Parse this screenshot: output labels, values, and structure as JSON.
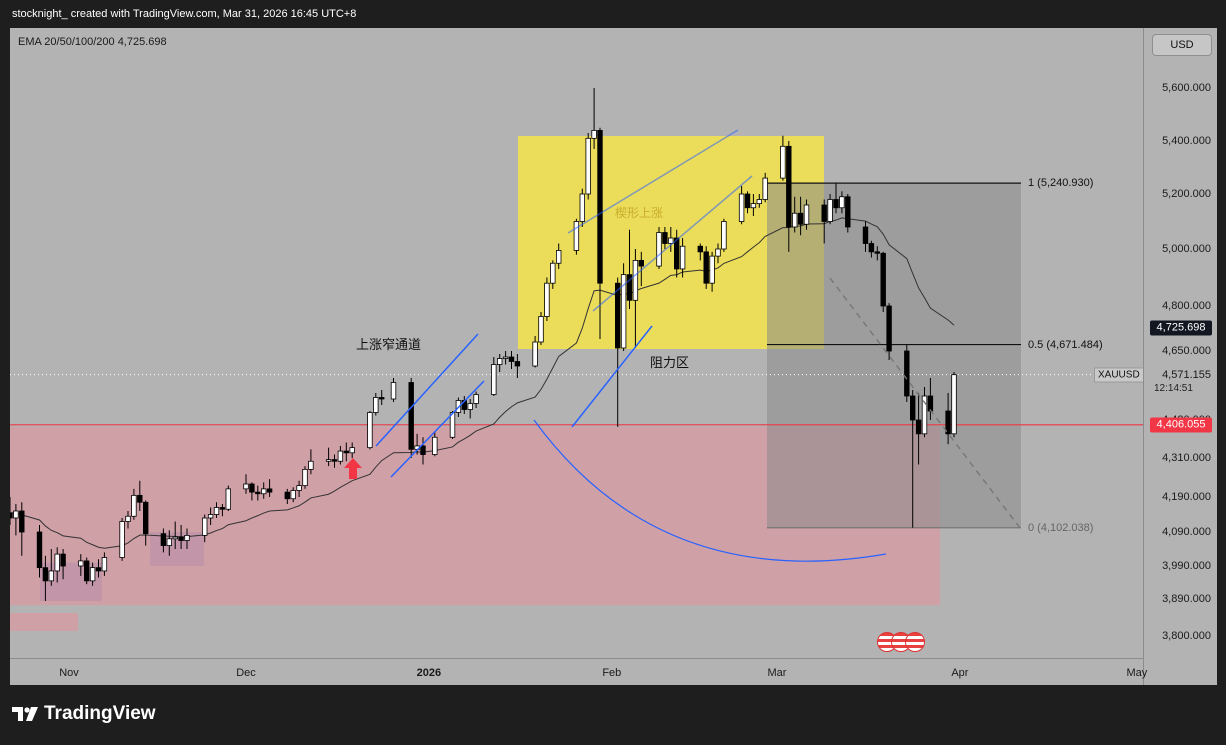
{
  "header": {
    "text": "stocknight_ created with TradingView.com, Mar 31, 2026 16:45 UTC+8"
  },
  "legend": {
    "text": "EMA 20/50/100/200  4,725.698"
  },
  "currency_button": "USD",
  "symbol": "XAUUSD",
  "brand": "TradingView",
  "last_price": {
    "value": "4,571.155",
    "countdown": "12:14:51"
  },
  "badges": {
    "ema": {
      "text": "4,725.698",
      "value": 4725.698,
      "color": "#131722",
      "text_color": "#ffffff"
    },
    "support": {
      "text": "4,406.055",
      "value": 4406.055,
      "color": "#f23645",
      "text_color": "#ffffff"
    }
  },
  "price_axis": {
    "ticks": [
      {
        "label": "5,600.000",
        "value": 5600
      },
      {
        "label": "5,400.000",
        "value": 5400
      },
      {
        "label": "5,200.000",
        "value": 5200
      },
      {
        "label": "5,000.000",
        "value": 5000
      },
      {
        "label": "4,800.000",
        "value": 4800
      },
      {
        "label": "4,650.000",
        "value": 4650
      },
      {
        "label": "4,420.000",
        "value": 4420
      },
      {
        "label": "4,310.000",
        "value": 4310
      },
      {
        "label": "4,190.000",
        "value": 4190
      },
      {
        "label": "4,090.000",
        "value": 4090
      },
      {
        "label": "3,990.000",
        "value": 3990
      },
      {
        "label": "3,890.000",
        "value": 3890
      },
      {
        "label": "3,800.000",
        "value": 3800
      }
    ]
  },
  "time_axis": {
    "labels": [
      {
        "label": "Nov",
        "date": "2025-11-01",
        "bold": false
      },
      {
        "label": "Dec",
        "date": "2025-12-01",
        "bold": false
      },
      {
        "label": "2026",
        "date": "2026-01-01",
        "bold": true
      },
      {
        "label": "Feb",
        "date": "2026-02-01",
        "bold": false
      },
      {
        "label": "Mar",
        "date": "2026-03-01",
        "bold": false
      },
      {
        "label": "Apr",
        "date": "2026-04-01",
        "bold": false
      },
      {
        "label": "May",
        "date": "2026-05-01",
        "bold": false
      }
    ]
  },
  "annotations": {
    "channel": "上涨窄通道",
    "resistance": "阻力区",
    "wedge": "楔形上涨"
  },
  "fib_levels": [
    {
      "label": "1 (5,240.930)",
      "value": 5240.93
    },
    {
      "label": "0.5 (4,671.484)",
      "value": 4671.484
    },
    {
      "label": "0 (4,102.038)",
      "value": 4102.038
    }
  ],
  "colors": {
    "background": "#b3b3b3",
    "candle_up": "#ffffff",
    "candle_down": "#000000",
    "resistance_zone": "#f5e34a",
    "support_zone": "#d99aa3",
    "fib_box": "#8a8a8a",
    "trendline": "#2962ff",
    "support_line": "#f23645"
  },
  "chart_data": {
    "type": "candlestick",
    "symbol": "XAUUSD",
    "ylim": [
      3760,
      5680
    ],
    "x_start": "2025-10-21",
    "x_end": "2026-05-10",
    "candles": [
      {
        "d": "2025-10-21",
        "o": 4175,
        "h": 4195,
        "l": 4120,
        "c": 4145
      },
      {
        "d": "2025-10-22",
        "o": 4145,
        "h": 4190,
        "l": 4110,
        "c": 4130
      },
      {
        "d": "2025-10-23",
        "o": 4130,
        "h": 4170,
        "l": 4080,
        "c": 4150
      },
      {
        "d": "2025-10-24",
        "o": 4150,
        "h": 4175,
        "l": 4020,
        "c": 4090
      },
      {
        "d": "2025-10-27",
        "o": 4090,
        "h": 4110,
        "l": 3955,
        "c": 3985
      },
      {
        "d": "2025-10-28",
        "o": 3985,
        "h": 4020,
        "l": 3885,
        "c": 3945
      },
      {
        "d": "2025-10-29",
        "o": 3945,
        "h": 4040,
        "l": 3930,
        "c": 3975
      },
      {
        "d": "2025-10-30",
        "o": 3975,
        "h": 4045,
        "l": 3940,
        "c": 4025
      },
      {
        "d": "2025-10-31",
        "o": 4025,
        "h": 4040,
        "l": 3950,
        "c": 3990
      },
      {
        "d": "2025-11-03",
        "o": 3990,
        "h": 4025,
        "l": 3960,
        "c": 4005
      },
      {
        "d": "2025-11-04",
        "o": 4005,
        "h": 4015,
        "l": 3935,
        "c": 3945
      },
      {
        "d": "2025-11-05",
        "o": 3945,
        "h": 4000,
        "l": 3930,
        "c": 3985
      },
      {
        "d": "2025-11-06",
        "o": 3985,
        "h": 4010,
        "l": 3955,
        "c": 3975
      },
      {
        "d": "2025-11-07",
        "o": 3975,
        "h": 4030,
        "l": 3960,
        "c": 4015
      },
      {
        "d": "2025-11-10",
        "o": 4015,
        "h": 4130,
        "l": 4005,
        "c": 4120
      },
      {
        "d": "2025-11-11",
        "o": 4120,
        "h": 4150,
        "l": 4100,
        "c": 4135
      },
      {
        "d": "2025-11-12",
        "o": 4135,
        "h": 4215,
        "l": 4125,
        "c": 4195
      },
      {
        "d": "2025-11-13",
        "o": 4195,
        "h": 4240,
        "l": 4150,
        "c": 4175
      },
      {
        "d": "2025-11-14",
        "o": 4175,
        "h": 4180,
        "l": 4050,
        "c": 4085
      },
      {
        "d": "2025-11-17",
        "o": 4085,
        "h": 4100,
        "l": 4030,
        "c": 4050
      },
      {
        "d": "2025-11-18",
        "o": 4050,
        "h": 4095,
        "l": 4020,
        "c": 4070
      },
      {
        "d": "2025-11-19",
        "o": 4070,
        "h": 4120,
        "l": 4040,
        "c": 4075
      },
      {
        "d": "2025-11-20",
        "o": 4075,
        "h": 4110,
        "l": 4040,
        "c": 4065
      },
      {
        "d": "2025-11-21",
        "o": 4065,
        "h": 4100,
        "l": 4040,
        "c": 4080
      },
      {
        "d": "2025-11-24",
        "o": 4080,
        "h": 4140,
        "l": 4060,
        "c": 4130
      },
      {
        "d": "2025-11-25",
        "o": 4130,
        "h": 4160,
        "l": 4110,
        "c": 4140
      },
      {
        "d": "2025-11-26",
        "o": 4140,
        "h": 4175,
        "l": 4130,
        "c": 4160
      },
      {
        "d": "2025-11-27",
        "o": 4160,
        "h": 4170,
        "l": 4135,
        "c": 4155
      },
      {
        "d": "2025-11-28",
        "o": 4155,
        "h": 4225,
        "l": 4150,
        "c": 4215
      },
      {
        "d": "2025-12-01",
        "o": 4215,
        "h": 4260,
        "l": 4200,
        "c": 4230
      },
      {
        "d": "2025-12-02",
        "o": 4230,
        "h": 4235,
        "l": 4180,
        "c": 4205
      },
      {
        "d": "2025-12-03",
        "o": 4205,
        "h": 4225,
        "l": 4180,
        "c": 4200
      },
      {
        "d": "2025-12-04",
        "o": 4200,
        "h": 4235,
        "l": 4185,
        "c": 4215
      },
      {
        "d": "2025-12-05",
        "o": 4215,
        "h": 4245,
        "l": 4190,
        "c": 4205
      },
      {
        "d": "2025-12-08",
        "o": 4205,
        "h": 4215,
        "l": 4170,
        "c": 4185
      },
      {
        "d": "2025-12-09",
        "o": 4185,
        "h": 4220,
        "l": 4175,
        "c": 4210
      },
      {
        "d": "2025-12-10",
        "o": 4210,
        "h": 4240,
        "l": 4190,
        "c": 4225
      },
      {
        "d": "2025-12-11",
        "o": 4225,
        "h": 4285,
        "l": 4215,
        "c": 4275
      },
      {
        "d": "2025-12-12",
        "o": 4275,
        "h": 4335,
        "l": 4260,
        "c": 4300
      },
      {
        "d": "2025-12-15",
        "o": 4300,
        "h": 4340,
        "l": 4285,
        "c": 4305
      },
      {
        "d": "2025-12-16",
        "o": 4305,
        "h": 4320,
        "l": 4280,
        "c": 4300
      },
      {
        "d": "2025-12-17",
        "o": 4300,
        "h": 4345,
        "l": 4290,
        "c": 4330
      },
      {
        "d": "2025-12-18",
        "o": 4330,
        "h": 4355,
        "l": 4300,
        "c": 4325
      },
      {
        "d": "2025-12-19",
        "o": 4325,
        "h": 4355,
        "l": 4310,
        "c": 4340
      },
      {
        "d": "2025-12-22",
        "o": 4340,
        "h": 4450,
        "l": 4335,
        "c": 4445
      },
      {
        "d": "2025-12-23",
        "o": 4445,
        "h": 4510,
        "l": 4435,
        "c": 4495
      },
      {
        "d": "2025-12-24",
        "o": 4495,
        "h": 4520,
        "l": 4470,
        "c": 4490
      },
      {
        "d": "2025-12-26",
        "o": 4490,
        "h": 4560,
        "l": 4480,
        "c": 4545
      },
      {
        "d": "2025-12-29",
        "o": 4545,
        "h": 4560,
        "l": 4310,
        "c": 4335
      },
      {
        "d": "2025-12-30",
        "o": 4335,
        "h": 4380,
        "l": 4320,
        "c": 4345
      },
      {
        "d": "2025-12-31",
        "o": 4345,
        "h": 4370,
        "l": 4290,
        "c": 4320
      },
      {
        "d": "2026-01-02",
        "o": 4320,
        "h": 4385,
        "l": 4315,
        "c": 4370
      },
      {
        "d": "2026-01-05",
        "o": 4370,
        "h": 4450,
        "l": 4365,
        "c": 4445
      },
      {
        "d": "2026-01-06",
        "o": 4445,
        "h": 4495,
        "l": 4430,
        "c": 4485
      },
      {
        "d": "2026-01-07",
        "o": 4485,
        "h": 4500,
        "l": 4440,
        "c": 4455
      },
      {
        "d": "2026-01-08",
        "o": 4455,
        "h": 4490,
        "l": 4425,
        "c": 4475
      },
      {
        "d": "2026-01-09",
        "o": 4475,
        "h": 4515,
        "l": 4460,
        "c": 4505
      },
      {
        "d": "2026-01-12",
        "o": 4505,
        "h": 4630,
        "l": 4500,
        "c": 4605
      },
      {
        "d": "2026-01-13",
        "o": 4605,
        "h": 4640,
        "l": 4580,
        "c": 4625
      },
      {
        "d": "2026-01-14",
        "o": 4625,
        "h": 4650,
        "l": 4605,
        "c": 4630
      },
      {
        "d": "2026-01-15",
        "o": 4630,
        "h": 4650,
        "l": 4590,
        "c": 4615
      },
      {
        "d": "2026-01-16",
        "o": 4615,
        "h": 4640,
        "l": 4560,
        "c": 4600
      },
      {
        "d": "2026-01-19",
        "o": 4600,
        "h": 4700,
        "l": 4595,
        "c": 4680
      },
      {
        "d": "2026-01-20",
        "o": 4680,
        "h": 4780,
        "l": 4670,
        "c": 4765
      },
      {
        "d": "2026-01-21",
        "o": 4765,
        "h": 4900,
        "l": 4750,
        "c": 4880
      },
      {
        "d": "2026-01-22",
        "o": 4880,
        "h": 4960,
        "l": 4860,
        "c": 4950
      },
      {
        "d": "2026-01-23",
        "o": 4950,
        "h": 5020,
        "l": 4930,
        "c": 4995
      },
      {
        "d": "2026-01-26",
        "o": 4995,
        "h": 5110,
        "l": 4980,
        "c": 5100
      },
      {
        "d": "2026-01-27",
        "o": 5100,
        "h": 5220,
        "l": 5080,
        "c": 5200
      },
      {
        "d": "2026-01-28",
        "o": 5200,
        "h": 5430,
        "l": 5180,
        "c": 5410
      },
      {
        "d": "2026-01-29",
        "o": 5410,
        "h": 5600,
        "l": 5370,
        "c": 5440
      },
      {
        "d": "2026-01-30",
        "o": 5440,
        "h": 5450,
        "l": 4690,
        "c": 4880
      },
      {
        "d": "2026-02-02",
        "o": 4880,
        "h": 4900,
        "l": 4400,
        "c": 4660
      },
      {
        "d": "2026-02-03",
        "o": 4660,
        "h": 4950,
        "l": 4650,
        "c": 4910
      },
      {
        "d": "2026-02-04",
        "o": 4910,
        "h": 5070,
        "l": 4790,
        "c": 4820
      },
      {
        "d": "2026-02-05",
        "o": 4820,
        "h": 5000,
        "l": 4660,
        "c": 4960
      },
      {
        "d": "2026-02-06",
        "o": 4960,
        "h": 4990,
        "l": 4870,
        "c": 4940
      },
      {
        "d": "2026-02-09",
        "o": 4940,
        "h": 5080,
        "l": 4930,
        "c": 5060
      },
      {
        "d": "2026-02-10",
        "o": 5060,
        "h": 5080,
        "l": 5000,
        "c": 5020
      },
      {
        "d": "2026-02-11",
        "o": 5020,
        "h": 5080,
        "l": 4990,
        "c": 5040
      },
      {
        "d": "2026-02-12",
        "o": 5040,
        "h": 5070,
        "l": 4900,
        "c": 4930
      },
      {
        "d": "2026-02-13",
        "o": 4930,
        "h": 5040,
        "l": 4900,
        "c": 5010
      },
      {
        "d": "2026-02-16",
        "o": 5010,
        "h": 5020,
        "l": 4960,
        "c": 4990
      },
      {
        "d": "2026-02-17",
        "o": 4990,
        "h": 5010,
        "l": 4860,
        "c": 4880
      },
      {
        "d": "2026-02-18",
        "o": 4880,
        "h": 4990,
        "l": 4850,
        "c": 4975
      },
      {
        "d": "2026-02-19",
        "o": 4975,
        "h": 5020,
        "l": 4950,
        "c": 5000
      },
      {
        "d": "2026-02-20",
        "o": 5000,
        "h": 5110,
        "l": 4990,
        "c": 5100
      },
      {
        "d": "2026-02-23",
        "o": 5100,
        "h": 5230,
        "l": 5090,
        "c": 5200
      },
      {
        "d": "2026-02-24",
        "o": 5200,
        "h": 5210,
        "l": 5130,
        "c": 5150
      },
      {
        "d": "2026-02-25",
        "o": 5150,
        "h": 5200,
        "l": 5120,
        "c": 5165
      },
      {
        "d": "2026-02-26",
        "o": 5165,
        "h": 5200,
        "l": 5150,
        "c": 5180
      },
      {
        "d": "2026-02-27",
        "o": 5180,
        "h": 5280,
        "l": 5170,
        "c": 5260
      },
      {
        "d": "2026-03-02",
        "o": 5260,
        "h": 5420,
        "l": 5250,
        "c": 5380
      },
      {
        "d": "2026-03-03",
        "o": 5380,
        "h": 5400,
        "l": 4990,
        "c": 5080
      },
      {
        "d": "2026-03-04",
        "o": 5080,
        "h": 5190,
        "l": 5060,
        "c": 5130
      },
      {
        "d": "2026-03-05",
        "o": 5130,
        "h": 5190,
        "l": 5050,
        "c": 5090
      },
      {
        "d": "2026-03-06",
        "o": 5090,
        "h": 5180,
        "l": 5070,
        "c": 5160
      },
      {
        "d": "2026-03-09",
        "o": 5160,
        "h": 5180,
        "l": 5020,
        "c": 5100
      },
      {
        "d": "2026-03-10",
        "o": 5100,
        "h": 5200,
        "l": 5090,
        "c": 5180
      },
      {
        "d": "2026-03-11",
        "o": 5180,
        "h": 5240,
        "l": 5130,
        "c": 5150
      },
      {
        "d": "2026-03-12",
        "o": 5150,
        "h": 5210,
        "l": 5130,
        "c": 5190
      },
      {
        "d": "2026-03-13",
        "o": 5190,
        "h": 5200,
        "l": 5060,
        "c": 5080
      },
      {
        "d": "2026-03-16",
        "o": 5080,
        "h": 5100,
        "l": 4990,
        "c": 5020
      },
      {
        "d": "2026-03-17",
        "o": 5020,
        "h": 5030,
        "l": 4970,
        "c": 4990
      },
      {
        "d": "2026-03-18",
        "o": 4990,
        "h": 5010,
        "l": 4960,
        "c": 4985
      },
      {
        "d": "2026-03-19",
        "o": 4985,
        "h": 4990,
        "l": 4780,
        "c": 4800
      },
      {
        "d": "2026-03-20",
        "o": 4800,
        "h": 4810,
        "l": 4620,
        "c": 4650
      },
      {
        "d": "2026-03-23",
        "o": 4650,
        "h": 4670,
        "l": 4480,
        "c": 4500
      },
      {
        "d": "2026-03-24",
        "o": 4500,
        "h": 4520,
        "l": 4102,
        "c": 4420
      },
      {
        "d": "2026-03-25",
        "o": 4420,
        "h": 4510,
        "l": 4290,
        "c": 4380
      },
      {
        "d": "2026-03-26",
        "o": 4380,
        "h": 4530,
        "l": 4370,
        "c": 4500
      },
      {
        "d": "2026-03-27",
        "o": 4500,
        "h": 4560,
        "l": 4420,
        "c": 4450
      },
      {
        "d": "2026-03-30",
        "o": 4450,
        "h": 4510,
        "l": 4350,
        "c": 4380
      },
      {
        "d": "2026-03-31",
        "o": 4380,
        "h": 4580,
        "l": 4370,
        "c": 4571
      }
    ]
  }
}
